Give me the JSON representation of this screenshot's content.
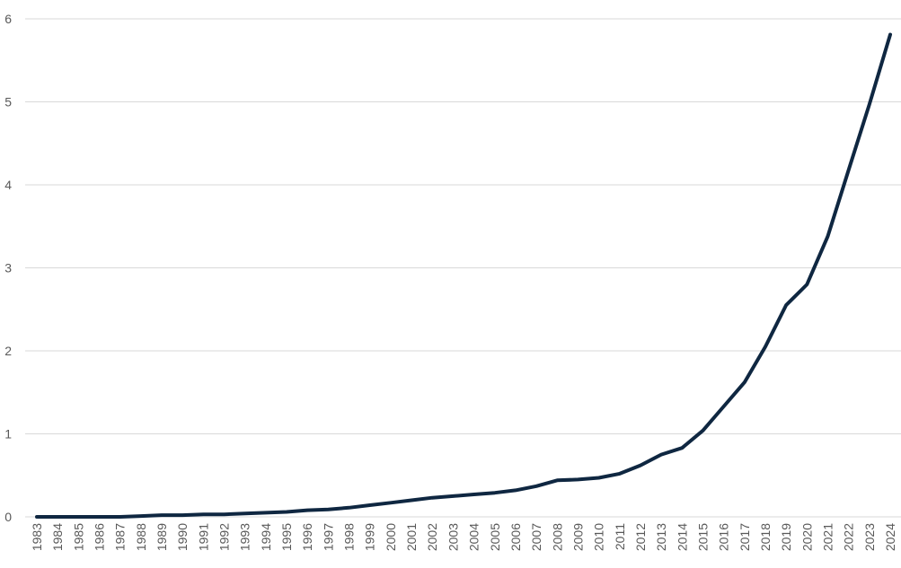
{
  "chart_data": {
    "type": "line",
    "title": "",
    "xlabel": "",
    "ylabel": "",
    "ylim": [
      0,
      6
    ],
    "yticks": [
      0,
      1,
      2,
      3,
      4,
      5,
      6
    ],
    "grid": "horizontal",
    "legend": "none",
    "x": [
      "1983",
      "1984",
      "1985",
      "1986",
      "1987",
      "1988",
      "1989",
      "1990",
      "1991",
      "1992",
      "1993",
      "1994",
      "1995",
      "1996",
      "1997",
      "1998",
      "1999",
      "2000",
      "2001",
      "2002",
      "2003",
      "2004",
      "2005",
      "2006",
      "2007",
      "2008",
      "2009",
      "2010",
      "2011",
      "2012",
      "2013",
      "2014",
      "2015",
      "2016",
      "2017",
      "2018",
      "2019",
      "2020",
      "2021",
      "2022",
      "2023",
      "2024"
    ],
    "series": [
      {
        "color": "#0f2741",
        "values": [
          0.0,
          0.0,
          0.0,
          0.0,
          0.0,
          0.01,
          0.02,
          0.02,
          0.03,
          0.03,
          0.04,
          0.05,
          0.06,
          0.08,
          0.09,
          0.11,
          0.14,
          0.17,
          0.2,
          0.23,
          0.25,
          0.27,
          0.29,
          0.32,
          0.37,
          0.44,
          0.45,
          0.47,
          0.52,
          0.62,
          0.75,
          0.83,
          1.04,
          1.33,
          1.62,
          2.05,
          2.55,
          2.8,
          3.38,
          4.18,
          4.97,
          5.81
        ]
      }
    ]
  }
}
